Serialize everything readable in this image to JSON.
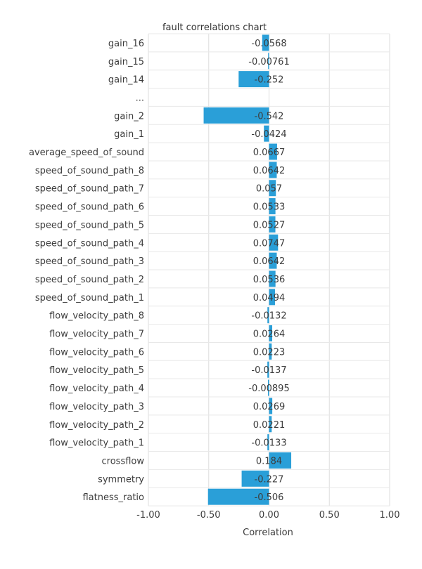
{
  "chart_data": {
    "type": "bar",
    "orientation": "horizontal",
    "title": "fault correlations chart",
    "xlabel": "Correlation",
    "ylabel": "",
    "xlim": [
      -1.0,
      1.0
    ],
    "xticks": [
      "-1.00",
      "-0.50",
      "0.00",
      "0.50",
      "1.00"
    ],
    "grid": true,
    "categories": [
      "gain_16",
      "gain_15",
      "gain_14",
      "...",
      "gain_2",
      "gain_1",
      "average_speed_of_sound",
      "speed_of_sound_path_8",
      "speed_of_sound_path_7",
      "speed_of_sound_path_6",
      "speed_of_sound_path_5",
      "speed_of_sound_path_4",
      "speed_of_sound_path_3",
      "speed_of_sound_path_2",
      "speed_of_sound_path_1",
      "flow_velocity_path_8",
      "flow_velocity_path_7",
      "flow_velocity_path_6",
      "flow_velocity_path_5",
      "flow_velocity_path_4",
      "flow_velocity_path_3",
      "flow_velocity_path_2",
      "flow_velocity_path_1",
      "crossflow",
      "symmetry",
      "flatness_ratio"
    ],
    "values": [
      -0.0568,
      -0.00761,
      -0.252,
      null,
      -0.542,
      -0.0424,
      0.0667,
      0.0642,
      0.057,
      0.0533,
      0.0527,
      0.0747,
      0.0642,
      0.0536,
      0.0494,
      -0.0132,
      0.0264,
      0.0223,
      -0.0137,
      -0.00895,
      0.0269,
      0.0221,
      -0.0133,
      0.184,
      -0.227,
      -0.506
    ],
    "value_labels": [
      "-0.0568",
      "-0.00761",
      "-0.252",
      "",
      "-0.542",
      "-0.0424",
      "0.0667",
      "0.0642",
      "0.057",
      "0.0533",
      "0.0527",
      "0.0747",
      "0.0642",
      "0.0536",
      "0.0494",
      "-0.0132",
      "0.0264",
      "0.0223",
      "-0.0137",
      "-0.00895",
      "0.0269",
      "0.0221",
      "-0.0133",
      "0.184",
      "-0.227",
      "-0.506"
    ],
    "bar_color": "#2a9fd8"
  }
}
